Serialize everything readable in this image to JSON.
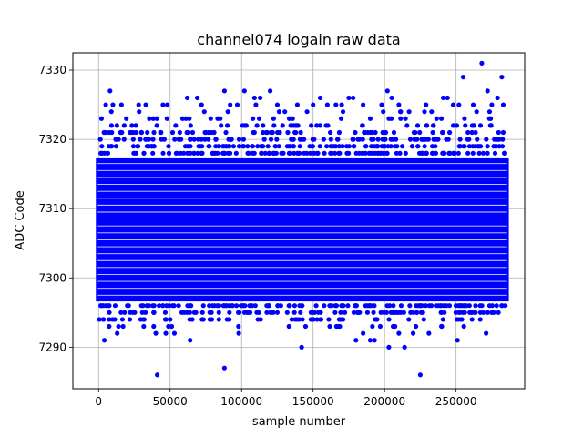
{
  "chart_data": {
    "type": "scatter",
    "title": "channel074 logain raw data",
    "xlabel": "sample number",
    "ylabel": "ADC Code",
    "xlim": [
      -18000,
      298000
    ],
    "ylim": [
      7284,
      7332.5
    ],
    "xticks": [
      0,
      50000,
      100000,
      150000,
      200000,
      250000
    ],
    "xtick_labels": [
      "0",
      "50000",
      "100000",
      "150000",
      "200000",
      "250000"
    ],
    "yticks": [
      7290,
      7300,
      7310,
      7320,
      7330
    ],
    "ytick_labels": [
      "7290",
      "7300",
      "7310",
      "7320",
      "7330"
    ],
    "grid": true,
    "marker_color": "#0000ff",
    "x_range": [
      0,
      285000
    ],
    "dense_band": {
      "y_min": 7297,
      "y_max": 7317
    },
    "series": [
      {
        "points": [
          [
            41000,
            7286
          ],
          [
            88000,
            7287
          ],
          [
            225000,
            7286
          ],
          [
            142000,
            7290
          ],
          [
            203000,
            7290
          ],
          [
            214000,
            7290
          ],
          [
            4000,
            7291
          ],
          [
            64000,
            7291
          ],
          [
            180000,
            7291
          ],
          [
            190000,
            7291
          ],
          [
            193000,
            7291
          ],
          [
            251000,
            7291
          ],
          [
            13000,
            7292
          ],
          [
            40000,
            7292
          ],
          [
            47000,
            7292
          ],
          [
            53000,
            7292
          ],
          [
            98000,
            7292
          ],
          [
            185000,
            7292
          ],
          [
            210000,
            7292
          ],
          [
            220000,
            7292
          ],
          [
            231000,
            7292
          ],
          [
            271000,
            7292
          ],
          [
            268000,
            7331
          ],
          [
            255000,
            7329
          ],
          [
            282000,
            7329
          ],
          [
            8000,
            7327
          ],
          [
            88000,
            7327
          ],
          [
            102000,
            7327
          ],
          [
            120000,
            7327
          ],
          [
            202000,
            7327
          ],
          [
            272000,
            7327
          ],
          [
            62000,
            7326
          ],
          [
            69000,
            7326
          ],
          [
            109000,
            7326
          ],
          [
            113000,
            7326
          ],
          [
            155000,
            7326
          ],
          [
            175000,
            7326
          ],
          [
            178000,
            7326
          ],
          [
            205000,
            7326
          ],
          [
            241000,
            7326
          ],
          [
            244000,
            7326
          ],
          [
            279000,
            7326
          ],
          [
            5000,
            7325
          ],
          [
            10000,
            7325
          ],
          [
            16000,
            7325
          ],
          [
            28000,
            7325
          ],
          [
            33000,
            7325
          ],
          [
            45000,
            7325
          ],
          [
            48000,
            7325
          ],
          [
            72000,
            7325
          ],
          [
            92000,
            7325
          ],
          [
            97000,
            7325
          ],
          [
            110000,
            7325
          ],
          [
            125000,
            7325
          ],
          [
            139000,
            7325
          ],
          [
            150000,
            7325
          ],
          [
            160000,
            7325
          ],
          [
            166000,
            7325
          ],
          [
            170000,
            7325
          ],
          [
            185000,
            7325
          ],
          [
            198000,
            7325
          ],
          [
            210000,
            7325
          ],
          [
            229000,
            7325
          ],
          [
            248000,
            7325
          ],
          [
            252000,
            7325
          ],
          [
            262000,
            7325
          ],
          [
            275000,
            7325
          ],
          [
            283000,
            7325
          ]
        ]
      }
    ]
  }
}
